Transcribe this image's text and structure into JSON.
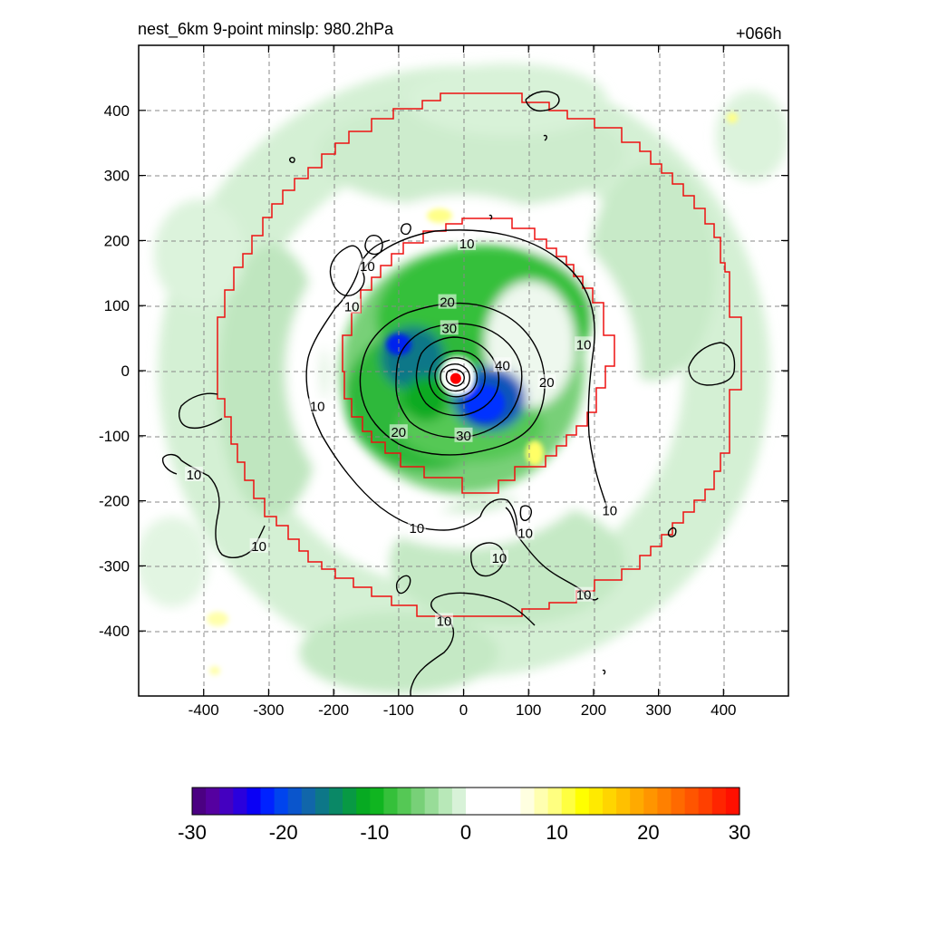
{
  "header": {
    "title": "nest_6km  9-point minslp: 980.2hPa",
    "forecast_hour": "+066h"
  },
  "chart_data": {
    "type": "heatmap",
    "title": "nest_6km  9-point minslp: 980.2hPa",
    "forecast_hour": "+066h",
    "xlim": [
      -500,
      500
    ],
    "ylim": [
      -500,
      500
    ],
    "x_ticks": [
      -400,
      -300,
      -200,
      -100,
      0,
      100,
      200,
      300,
      400
    ],
    "y_ticks": [
      400,
      300,
      200,
      100,
      0,
      -100,
      -200,
      -300,
      -400
    ],
    "grid": true,
    "center_marker": {
      "x": -12,
      "y": -12,
      "color": "#ff0000"
    },
    "contour_labels": [
      {
        "text": "10",
        "x": 5,
        "y": 195
      },
      {
        "text": "10",
        "x": -148,
        "y": 160
      },
      {
        "text": "10",
        "x": -172,
        "y": 98
      },
      {
        "text": "20",
        "x": -25,
        "y": 105
      },
      {
        "text": "30",
        "x": -22,
        "y": 65
      },
      {
        "text": "40",
        "x": 60,
        "y": 8
      },
      {
        "text": "20",
        "x": 128,
        "y": -18
      },
      {
        "text": "10",
        "x": 185,
        "y": 40
      },
      {
        "text": "10",
        "x": -225,
        "y": -55
      },
      {
        "text": "20",
        "x": -100,
        "y": -95
      },
      {
        "text": "30",
        "x": 0,
        "y": -100
      },
      {
        "text": "10",
        "x": -415,
        "y": -160
      },
      {
        "text": "10",
        "x": -315,
        "y": -270
      },
      {
        "text": "10",
        "x": -72,
        "y": -242
      },
      {
        "text": "10",
        "x": 95,
        "y": -250
      },
      {
        "text": "10",
        "x": 55,
        "y": -288
      },
      {
        "text": "10",
        "x": 225,
        "y": -215
      },
      {
        "text": "10",
        "x": 185,
        "y": -345
      },
      {
        "text": "10",
        "x": -30,
        "y": -385
      }
    ],
    "colorbar": {
      "min": -30,
      "max": 30,
      "tick_labels": [
        "-30",
        "-20",
        "-10",
        "0",
        "10",
        "20",
        "30"
      ],
      "colors": [
        "#4b0082",
        "#5500a0",
        "#4400c0",
        "#2a00dd",
        "#0a00f5",
        "#0022ff",
        "#0044ee",
        "#0a55cc",
        "#1166aa",
        "#0d7788",
        "#0a8866",
        "#089944",
        "#07aa22",
        "#10b520",
        "#35c03a",
        "#55c855",
        "#78d078",
        "#98dc98",
        "#b8e8b8",
        "#d8f2d8",
        "#ffffff",
        "#ffffff",
        "#ffffff",
        "#ffffff",
        "#ffffe0",
        "#ffffb0",
        "#ffff80",
        "#ffff40",
        "#ffff00",
        "#ffea00",
        "#ffd500",
        "#ffc000",
        "#ffaa00",
        "#ff9500",
        "#ff8000",
        "#ff6a00",
        "#ff5500",
        "#ff4000",
        "#ff2500",
        "#ff1000"
      ]
    },
    "colors": {
      "contour": "#000000",
      "inner_box": "#ee1111",
      "grid": "#888888"
    }
  }
}
